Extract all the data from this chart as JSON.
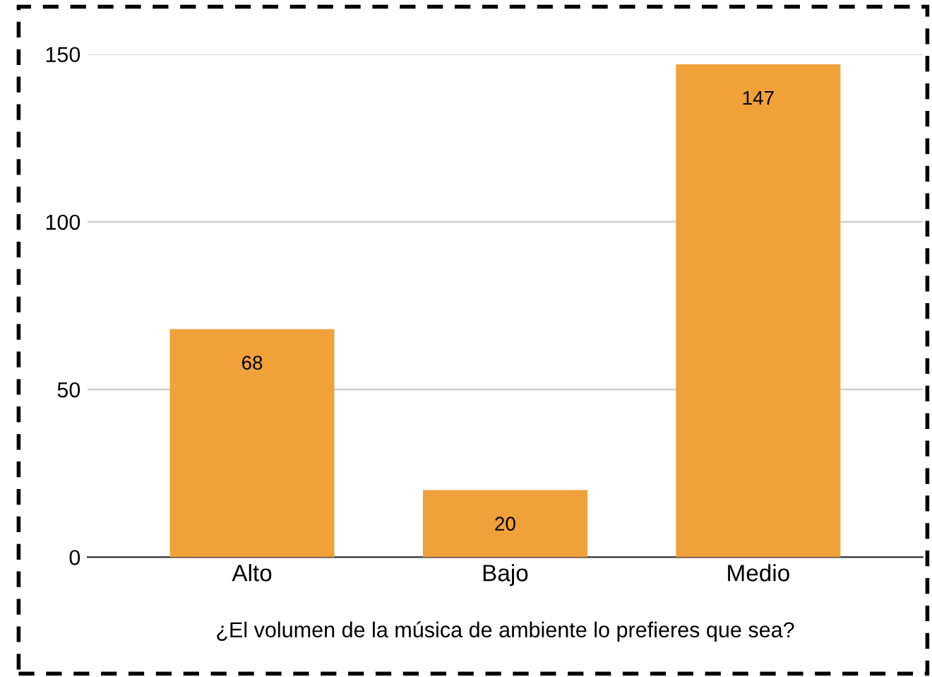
{
  "chart_data": {
    "type": "bar",
    "xlabel": "¿El volumen de la música de ambiente lo prefieres que sea?",
    "categories": [
      "Alto",
      "Bajo",
      "Medio"
    ],
    "values": [
      68,
      20,
      147
    ],
    "color": "#f1a13a",
    "ylim": [
      0,
      150
    ],
    "yticks": [
      0,
      50,
      100,
      150
    ],
    "grid": "y",
    "data_labels": true
  }
}
